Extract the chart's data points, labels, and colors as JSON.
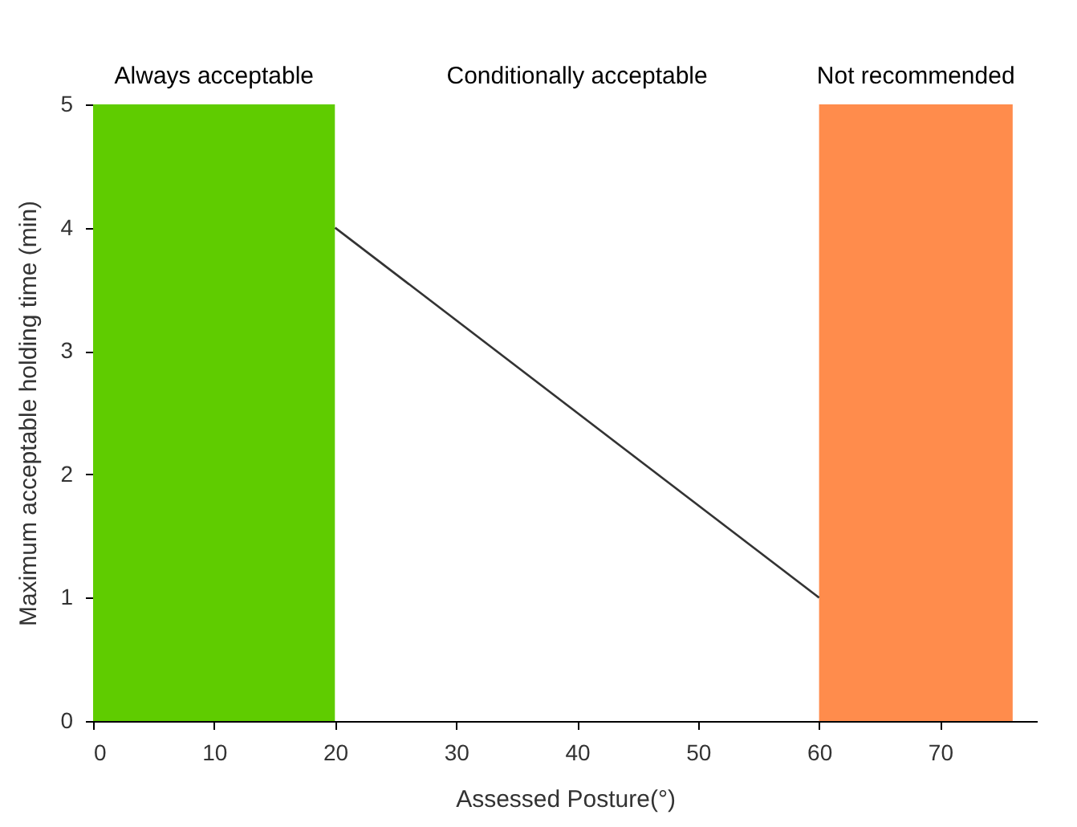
{
  "chart_data": {
    "type": "line",
    "xlabel": "Assessed Posture(°)",
    "ylabel": "Maximum acceptable holding time (min)",
    "series": [
      {
        "x": [
          20,
          60
        ],
        "values": [
          4,
          1
        ],
        "color": "#333333"
      }
    ],
    "bands": [
      {
        "axis": "x",
        "from": 0,
        "to": 20,
        "label": "Always acceptable",
        "color": "#5fcc00"
      },
      {
        "axis": "x",
        "from": 20,
        "to": 60,
        "label": "Conditionally acceptable",
        "color": "#ffffff"
      },
      {
        "axis": "x",
        "from": 60,
        "to": 76,
        "label": "Not recommended",
        "color": "#ff8c4c"
      }
    ],
    "xlim": [
      0,
      78
    ],
    "xticks": [
      0,
      10,
      20,
      30,
      40,
      50,
      60,
      70
    ],
    "ylim": [
      0,
      5
    ],
    "yticks": [
      0,
      1,
      2,
      3,
      4,
      5
    ],
    "grid": false,
    "legend": false
  }
}
